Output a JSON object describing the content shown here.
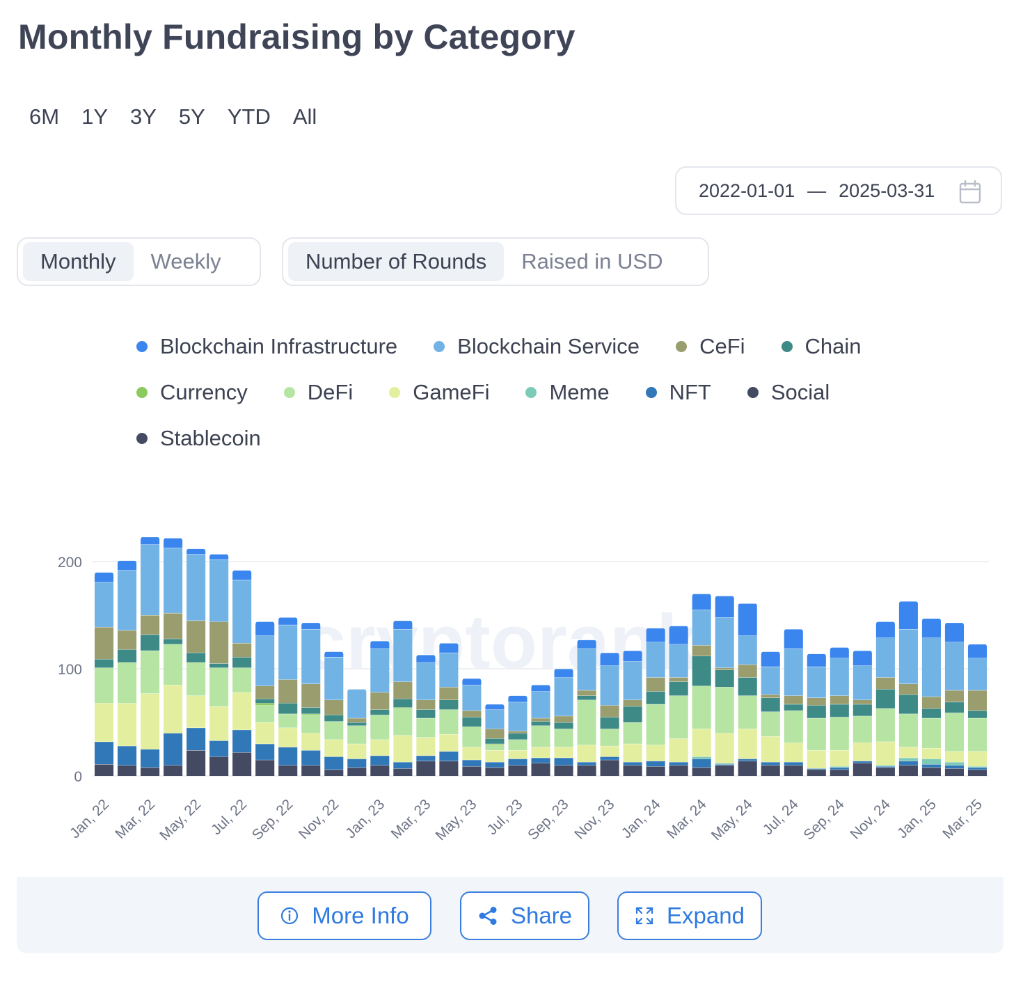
{
  "title": "Monthly Fundraising by Category",
  "ranges": [
    "6M",
    "1Y",
    "3Y",
    "5Y",
    "YTD",
    "All"
  ],
  "date_range": {
    "start": "2022-01-01",
    "separator": "—",
    "end": "2025-03-31",
    "icon": "calendar-icon"
  },
  "interval_toggle": {
    "options": [
      "Monthly",
      "Weekly"
    ],
    "selected": "Monthly"
  },
  "metric_toggle": {
    "options": [
      "Number of Rounds",
      "Raised in USD"
    ],
    "selected": "Number of Rounds"
  },
  "watermark": "cryptorank",
  "footer": {
    "more_info": {
      "label": "More Info",
      "icon": "info-icon"
    },
    "share": {
      "label": "Share",
      "icon": "share-icon"
    },
    "expand": {
      "label": "Expand",
      "icon": "expand-icon"
    }
  },
  "chart_data": {
    "type": "bar",
    "stacked": true,
    "title": "Monthly Fundraising by Category",
    "ylim": [
      0,
      200
    ],
    "yticks": [
      0,
      100,
      200
    ],
    "grid": true,
    "legend_position": "top",
    "categories": [
      "Jan, 22",
      "Feb, 22",
      "Mar, 22",
      "Apr, 22",
      "May, 22",
      "Jun, 22",
      "Jul, 22",
      "Aug, 22",
      "Sep, 22",
      "Oct, 22",
      "Nov, 22",
      "Dec, 22",
      "Jan, 23",
      "Feb, 23",
      "Mar, 23",
      "Apr, 23",
      "May, 23",
      "Jun, 23",
      "Jul, 23",
      "Aug, 23",
      "Sep, 23",
      "Oct, 23",
      "Nov, 23",
      "Dec, 23",
      "Jan, 24",
      "Feb, 24",
      "Mar, 24",
      "Apr, 24",
      "May, 24",
      "Jun, 24",
      "Jul, 24",
      "Aug, 24",
      "Sep, 24",
      "Oct, 24",
      "Nov, 24",
      "Dec, 24",
      "Jan, 25",
      "Feb, 25",
      "Mar, 25"
    ],
    "visible_tick_labels": [
      "Jan, 22",
      "Mar, 22",
      "May, 22",
      "Jul, 22",
      "Sep, 22",
      "Nov, 22",
      "Jan, 23",
      "Mar, 23",
      "May, 23",
      "Jul, 23",
      "Sep, 23",
      "Nov, 23",
      "Jan, 24",
      "Mar, 24",
      "May, 24",
      "Jul, 24",
      "Sep, 24",
      "Nov, 24",
      "Jan, 25",
      "Mar, 25"
    ],
    "series": [
      {
        "name": "Stablecoin",
        "color": "#434a62",
        "values": [
          11,
          10,
          8,
          10,
          24,
          18,
          22,
          15,
          10,
          10,
          6,
          8,
          10,
          7,
          14,
          14,
          9,
          8,
          10,
          12,
          10,
          10,
          15,
          10,
          9,
          10,
          8,
          10,
          14,
          10,
          10,
          6,
          6,
          12,
          8,
          10,
          8,
          7,
          6
        ]
      },
      {
        "name": "Social",
        "color": "#434a62",
        "values": [
          0,
          0,
          0,
          0,
          0,
          0,
          0,
          0,
          0,
          0,
          0,
          0,
          0,
          0,
          0,
          0,
          0,
          0,
          0,
          0,
          0,
          0,
          0,
          0,
          0,
          0,
          0,
          0,
          0,
          0,
          0,
          0,
          0,
          0,
          0,
          0,
          0,
          0,
          0
        ]
      },
      {
        "name": "NFT",
        "color": "#3178b8",
        "values": [
          21,
          18,
          17,
          30,
          21,
          15,
          21,
          15,
          17,
          14,
          12,
          8,
          9,
          6,
          5,
          9,
          6,
          5,
          6,
          5,
          7,
          3,
          3,
          3,
          5,
          3,
          8,
          1,
          2,
          3,
          3,
          1,
          2,
          2,
          1,
          4,
          3,
          3,
          2
        ]
      },
      {
        "name": "Meme",
        "color": "#7dcab6",
        "values": [
          0,
          0,
          0,
          0,
          0,
          0,
          0,
          0,
          0,
          0,
          0,
          0,
          0,
          0,
          0,
          0,
          0,
          0,
          0,
          0,
          0,
          0,
          0,
          0,
          0,
          0,
          2,
          1,
          0,
          0,
          0,
          0,
          1,
          0,
          1,
          3,
          5,
          3,
          1
        ]
      },
      {
        "name": "GameFi",
        "color": "#e3ef9f",
        "values": [
          36,
          40,
          52,
          45,
          30,
          32,
          35,
          20,
          18,
          16,
          16,
          14,
          15,
          25,
          17,
          16,
          12,
          11,
          8,
          10,
          10,
          16,
          10,
          17,
          15,
          22,
          26,
          28,
          28,
          24,
          18,
          17,
          15,
          17,
          22,
          10,
          10,
          10,
          14
        ]
      },
      {
        "name": "DeFi",
        "color": "#b6e4a2",
        "values": [
          33,
          38,
          40,
          38,
          31,
          36,
          23,
          16,
          13,
          17,
          17,
          17,
          23,
          25,
          18,
          23,
          19,
          5,
          10,
          20,
          17,
          42,
          16,
          20,
          38,
          40,
          40,
          43,
          31,
          23,
          30,
          30,
          31,
          25,
          31,
          31,
          28,
          36,
          31
        ]
      },
      {
        "name": "Currency",
        "color": "#8cca5e",
        "values": [
          0,
          0,
          0,
          0,
          0,
          0,
          0,
          2,
          0,
          1,
          0,
          0,
          0,
          1,
          0,
          0,
          0,
          1,
          0,
          0,
          0,
          0,
          0,
          0,
          0,
          0,
          0,
          0,
          0,
          0,
          0,
          0,
          0,
          0,
          0,
          0,
          0,
          0,
          0
        ]
      },
      {
        "name": "Chain",
        "color": "#3e8a86",
        "values": [
          8,
          12,
          15,
          5,
          9,
          4,
          10,
          4,
          10,
          6,
          6,
          3,
          5,
          8,
          8,
          9,
          9,
          5,
          6,
          4,
          6,
          4,
          11,
          15,
          12,
          13,
          28,
          16,
          17,
          13,
          6,
          12,
          12,
          11,
          18,
          18,
          9,
          10,
          7
        ]
      },
      {
        "name": "CeFi",
        "color": "#9a9e6e",
        "values": [
          30,
          18,
          18,
          24,
          30,
          39,
          13,
          12,
          22,
          22,
          14,
          4,
          16,
          16,
          9,
          12,
          6,
          9,
          2,
          3,
          6,
          5,
          11,
          6,
          13,
          4,
          10,
          2,
          12,
          3,
          8,
          7,
          8,
          4,
          11,
          10,
          11,
          11,
          19
        ]
      },
      {
        "name": "Blockchain Service",
        "color": "#72b3e6",
        "values": [
          42,
          56,
          66,
          61,
          62,
          58,
          59,
          47,
          51,
          51,
          40,
          27,
          41,
          49,
          35,
          32,
          24,
          18,
          27,
          25,
          36,
          39,
          37,
          36,
          33,
          31,
          33,
          47,
          27,
          26,
          44,
          29,
          35,
          32,
          37,
          51,
          55,
          45,
          30
        ]
      },
      {
        "name": "Blockchain Infrastructure",
        "color": "#3b86ee",
        "values": [
          9,
          9,
          7,
          9,
          5,
          5,
          9,
          13,
          7,
          6,
          5,
          0,
          7,
          8,
          7,
          9,
          6,
          5,
          6,
          6,
          8,
          8,
          12,
          10,
          13,
          17,
          15,
          20,
          30,
          14,
          18,
          12,
          10,
          14,
          15,
          26,
          18,
          18,
          13
        ]
      }
    ]
  },
  "legend": [
    {
      "name": "Blockchain Infrastructure",
      "color": "#3b86ee"
    },
    {
      "name": "Blockchain Service",
      "color": "#72b3e6"
    },
    {
      "name": "CeFi",
      "color": "#9a9e6e"
    },
    {
      "name": "Chain",
      "color": "#3e8a86"
    },
    {
      "name": "Currency",
      "color": "#8cca5e"
    },
    {
      "name": "DeFi",
      "color": "#b6e4a2"
    },
    {
      "name": "GameFi",
      "color": "#e3ef9f"
    },
    {
      "name": "Meme",
      "color": "#7dcab6"
    },
    {
      "name": "NFT",
      "color": "#3178b8"
    },
    {
      "name": "Social",
      "color": "#434a62"
    },
    {
      "name": "Stablecoin",
      "color": "#434a62"
    }
  ]
}
